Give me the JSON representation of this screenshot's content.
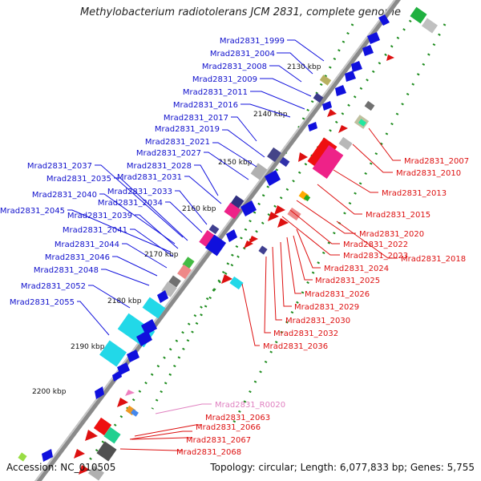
{
  "title": "Methylobacterium radiotolerans JCM 2831, complete genome",
  "accession": "Accession: NC_010505",
  "topology": "Topology: circular; Length: 6,077,833 bp; Genes: 5,755",
  "colors": {
    "forward_label": "#1010cc",
    "reverse_label": "#dd1010",
    "rna_label": "#e080c0",
    "backbone": "#888888",
    "gc_dots": "#1e8c1e"
  },
  "ticks": [
    "2130 kbp",
    "2140 kbp",
    "2150 kbp",
    "2160 kbp",
    "2170 kbp",
    "2180 kbp",
    "2190 kbp",
    "2200 kbp"
  ],
  "forward_genes": [
    "Mrad2831_1999",
    "Mrad2831_2004",
    "Mrad2831_2008",
    "Mrad2831_2009",
    "Mrad2831_2011",
    "Mrad2831_2016",
    "Mrad2831_2017",
    "Mrad2831_2019",
    "Mrad2831_2021",
    "Mrad2831_2027",
    "Mrad2831_2028",
    "Mrad2831_2031",
    "Mrad2831_2037",
    "Mrad2831_2035",
    "Mrad2831_2033",
    "Mrad2831_2040",
    "Mrad2831_2034",
    "Mrad2831_2045",
    "Mrad2831_2039",
    "Mrad2831_2041",
    "Mrad2831_2044",
    "Mrad2831_2046",
    "Mrad2831_2048",
    "Mrad2831_2052",
    "Mrad2831_2055"
  ],
  "reverse_genes": [
    "Mrad2831_2007",
    "Mrad2831_2010",
    "Mrad2831_2013",
    "Mrad2831_2015",
    "Mrad2831_2020",
    "Mrad2831_2022",
    "Mrad2831_2023",
    "Mrad2831_2018",
    "Mrad2831_2024",
    "Mrad2831_2025",
    "Mrad2831_2026",
    "Mrad2831_2029",
    "Mrad2831_2030",
    "Mrad2831_2032",
    "Mrad2831_2036"
  ],
  "bottom_genes": [
    "Mrad2831_R0020",
    "Mrad2831_2063",
    "Mrad2831_2066",
    "Mrad2831_2067",
    "Mrad2831_2068"
  ]
}
